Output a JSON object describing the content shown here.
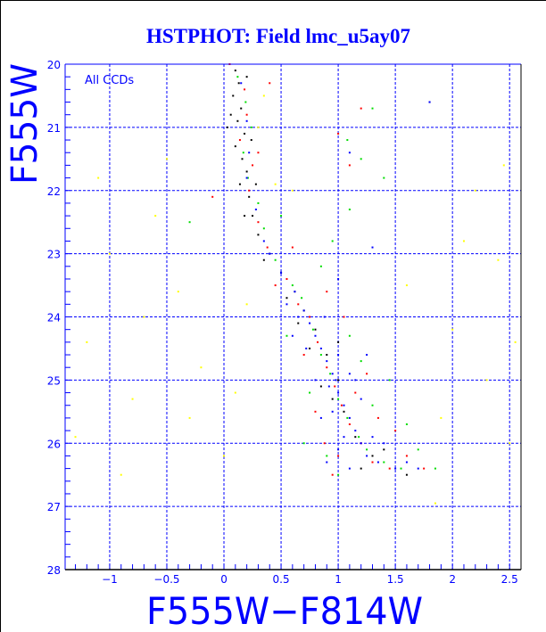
{
  "chart_data": {
    "type": "scatter",
    "title": "HSTPHOT: Field lmc_u5ay07",
    "annotation": "All CCDs",
    "xlabel": "F555W−F814W",
    "ylabel": "F555W",
    "xlim": [
      -1.39,
      2.6
    ],
    "ylim": [
      28,
      20
    ],
    "y_inverted": true,
    "grid": true,
    "x_ticks": [
      -1,
      -0.5,
      0,
      0.5,
      1,
      1.5,
      2,
      2.5
    ],
    "x_tick_labels": [
      "−1",
      "−0.5",
      "0",
      "0.5",
      "1",
      "1.5",
      "2",
      "2.5"
    ],
    "y_ticks": [
      20,
      21,
      22,
      23,
      24,
      25,
      26,
      27,
      28
    ],
    "y_tick_labels": [
      "20",
      "21",
      "22",
      "23",
      "24",
      "25",
      "26",
      "27",
      "28"
    ],
    "axis_color": "#0000ff",
    "series": [
      {
        "color": "#000000",
        "points": [
          [
            0.1,
            20.1
          ],
          [
            0.13,
            20.3
          ],
          [
            0.08,
            20.5
          ],
          [
            0.15,
            20.7
          ],
          [
            0.12,
            20.9
          ],
          [
            0.18,
            21.1
          ],
          [
            0.1,
            21.3
          ],
          [
            0.16,
            21.5
          ],
          [
            0.2,
            21.7
          ],
          [
            0.14,
            21.9
          ],
          [
            0.22,
            22.1
          ],
          [
            0.25,
            22.4
          ],
          [
            0.3,
            22.7
          ],
          [
            0.4,
            23.0
          ],
          [
            0.5,
            23.3
          ],
          [
            0.62,
            23.6
          ],
          [
            0.7,
            23.9
          ],
          [
            0.8,
            24.2
          ],
          [
            0.9,
            24.6
          ],
          [
            1.0,
            25.0
          ],
          [
            1.05,
            25.5
          ],
          [
            1.15,
            25.9
          ],
          [
            1.3,
            26.2
          ],
          [
            0.2,
            20.2
          ],
          [
            0.06,
            20.8
          ],
          [
            0.24,
            21.2
          ],
          [
            0.18,
            22.4
          ],
          [
            0.35,
            23.1
          ],
          [
            0.55,
            23.7
          ],
          [
            0.75,
            24.5
          ],
          [
            0.95,
            25.3
          ],
          [
            1.2,
            26.4
          ],
          [
            1.6,
            26.5
          ],
          [
            1.8,
            20.6
          ],
          [
            0.85,
            25.1
          ],
          [
            1.0,
            24.4
          ],
          [
            1.4,
            26.1
          ],
          [
            0.03,
            21.0
          ],
          [
            0.28,
            21.9
          ],
          [
            0.65,
            24.1
          ]
        ]
      },
      {
        "color": "#ff0000",
        "points": [
          [
            0.05,
            20.0
          ],
          [
            0.18,
            20.4
          ],
          [
            0.2,
            20.8
          ],
          [
            0.14,
            21.2
          ],
          [
            0.25,
            21.6
          ],
          [
            0.22,
            22.0
          ],
          [
            0.3,
            22.5
          ],
          [
            0.38,
            22.9
          ],
          [
            0.55,
            23.4
          ],
          [
            0.65,
            23.8
          ],
          [
            0.75,
            24.0
          ],
          [
            0.82,
            24.4
          ],
          [
            0.9,
            24.8
          ],
          [
            0.97,
            25.1
          ],
          [
            1.03,
            25.4
          ],
          [
            1.1,
            25.7
          ],
          [
            1.2,
            26.0
          ],
          [
            1.3,
            26.3
          ],
          [
            1.45,
            26.4
          ],
          [
            1.0,
            26.2
          ],
          [
            0.8,
            25.5
          ],
          [
            0.7,
            24.6
          ],
          [
            1.15,
            25.2
          ],
          [
            1.25,
            24.9
          ],
          [
            0.4,
            20.3
          ],
          [
            1.2,
            20.7
          ],
          [
            1.0,
            21.1
          ],
          [
            1.1,
            21.6
          ],
          [
            0.9,
            23.6
          ],
          [
            0.6,
            22.9
          ],
          [
            1.6,
            26.2
          ],
          [
            1.75,
            26.4
          ],
          [
            0.88,
            26.0
          ],
          [
            1.35,
            25.6
          ],
          [
            -0.1,
            22.1
          ],
          [
            0.45,
            23.5
          ],
          [
            1.05,
            24.0
          ],
          [
            0.95,
            26.5
          ],
          [
            1.5,
            25.8
          ],
          [
            0.3,
            21.4
          ]
        ]
      },
      {
        "color": "#00dd00",
        "points": [
          [
            0.12,
            20.2
          ],
          [
            0.19,
            20.6
          ],
          [
            0.24,
            21.0
          ],
          [
            0.17,
            21.4
          ],
          [
            0.21,
            21.8
          ],
          [
            0.3,
            22.2
          ],
          [
            0.35,
            22.6
          ],
          [
            0.45,
            23.1
          ],
          [
            0.6,
            23.5
          ],
          [
            0.68,
            23.7
          ],
          [
            0.78,
            24.2
          ],
          [
            0.85,
            24.6
          ],
          [
            0.93,
            24.9
          ],
          [
            1.0,
            25.3
          ],
          [
            1.08,
            25.6
          ],
          [
            1.18,
            25.9
          ],
          [
            1.25,
            26.1
          ],
          [
            1.4,
            26.3
          ],
          [
            1.55,
            26.4
          ],
          [
            0.9,
            26.2
          ],
          [
            0.75,
            25.2
          ],
          [
            1.3,
            25.4
          ],
          [
            1.2,
            24.7
          ],
          [
            1.1,
            24.3
          ],
          [
            1.3,
            20.7
          ],
          [
            1.08,
            21.2
          ],
          [
            1.2,
            21.5
          ],
          [
            1.4,
            21.8
          ],
          [
            1.1,
            22.3
          ],
          [
            0.95,
            22.8
          ],
          [
            1.7,
            26.1
          ],
          [
            1.85,
            26.4
          ],
          [
            1.0,
            26.5
          ],
          [
            0.55,
            24.3
          ],
          [
            1.45,
            25.0
          ],
          [
            -0.3,
            22.5
          ],
          [
            0.7,
            26.0
          ],
          [
            1.6,
            25.7
          ],
          [
            0.85,
            23.2
          ],
          [
            0.5,
            22.4
          ]
        ]
      },
      {
        "color": "#0000ff",
        "points": [
          [
            0.15,
            20.3
          ],
          [
            0.2,
            20.9
          ],
          [
            0.22,
            21.4
          ],
          [
            0.2,
            21.8
          ],
          [
            0.28,
            22.3
          ],
          [
            0.35,
            22.8
          ],
          [
            0.5,
            23.3
          ],
          [
            0.62,
            23.6
          ],
          [
            0.7,
            23.9
          ],
          [
            0.75,
            24.1
          ],
          [
            0.8,
            24.3
          ],
          [
            0.85,
            24.5
          ],
          [
            0.9,
            24.7
          ],
          [
            0.95,
            24.9
          ],
          [
            0.98,
            25.0
          ],
          [
            1.0,
            25.2
          ],
          [
            1.05,
            25.4
          ],
          [
            0.92,
            25.1
          ],
          [
            1.1,
            25.6
          ],
          [
            1.15,
            25.8
          ],
          [
            1.2,
            26.0
          ],
          [
            1.25,
            26.2
          ],
          [
            1.0,
            26.1
          ],
          [
            0.85,
            25.6
          ],
          [
            1.35,
            26.3
          ],
          [
            1.5,
            26.4
          ],
          [
            0.72,
            24.5
          ],
          [
            0.65,
            24.0
          ],
          [
            1.1,
            24.9
          ],
          [
            1.2,
            25.3
          ],
          [
            0.88,
            24.0
          ],
          [
            1.0,
            24.6
          ],
          [
            0.95,
            25.5
          ],
          [
            1.05,
            25.9
          ],
          [
            1.3,
            25.9
          ],
          [
            0.8,
            25.0
          ],
          [
            1.4,
            26.0
          ],
          [
            1.6,
            26.3
          ],
          [
            1.1,
            26.4
          ],
          [
            0.9,
            26.3
          ],
          [
            1.7,
            26.4
          ],
          [
            1.0,
            23.4
          ],
          [
            1.3,
            22.9
          ],
          [
            0.6,
            24.3
          ],
          [
            1.25,
            24.6
          ],
          [
            1.8,
            20.6
          ],
          [
            1.1,
            21.4
          ],
          [
            0.4,
            23.0
          ],
          [
            0.55,
            23.8
          ],
          [
            1.15,
            25.0
          ]
        ]
      },
      {
        "color": "#ffff00",
        "points": [
          [
            0.35,
            20.5
          ],
          [
            0.3,
            21.0
          ],
          [
            0.45,
            21.9
          ],
          [
            -0.6,
            22.4
          ],
          [
            -1.0,
            23.0
          ],
          [
            -1.2,
            24.4
          ],
          [
            -0.8,
            25.3
          ],
          [
            -1.3,
            25.9
          ],
          [
            -0.4,
            23.6
          ],
          [
            -0.2,
            24.8
          ],
          [
            0.0,
            26.2
          ],
          [
            -0.9,
            26.5
          ],
          [
            2.2,
            22.0
          ],
          [
            2.4,
            23.1
          ],
          [
            2.0,
            24.2
          ],
          [
            2.3,
            25.0
          ],
          [
            1.9,
            25.6
          ],
          [
            2.5,
            26.0
          ],
          [
            1.85,
            26.95
          ],
          [
            2.1,
            22.8
          ],
          [
            -0.5,
            21.5
          ],
          [
            -1.1,
            21.8
          ],
          [
            0.6,
            22.0
          ],
          [
            0.2,
            23.8
          ],
          [
            -0.3,
            25.6
          ],
          [
            2.55,
            24.4
          ],
          [
            1.6,
            23.5
          ],
          [
            -0.7,
            24.0
          ],
          [
            0.1,
            25.2
          ],
          [
            2.45,
            21.6
          ]
        ]
      }
    ]
  }
}
